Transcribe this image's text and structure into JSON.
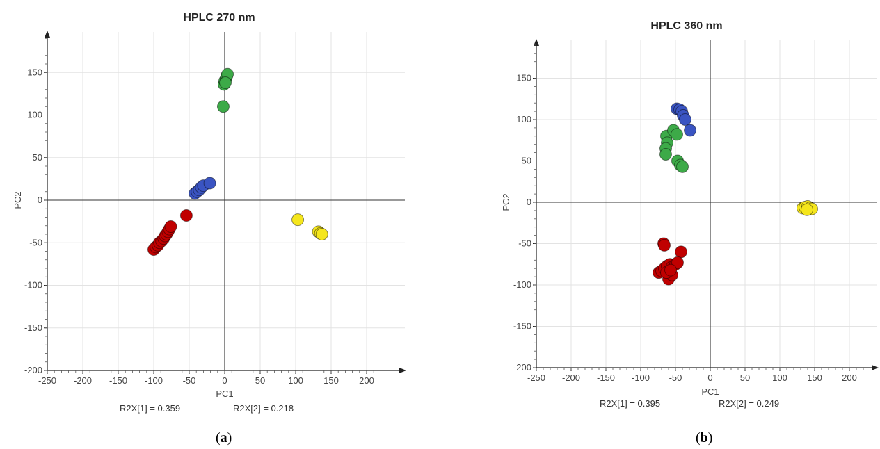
{
  "chart_data": [
    {
      "type": "scatter",
      "panel_label": "a",
      "title": "HPLC 270 nm",
      "xlabel": "PC1",
      "ylabel": "PC2",
      "xlim": [
        -250,
        250
      ],
      "ylim": [
        -200,
        200
      ],
      "xticks": [
        -250,
        -200,
        -150,
        -100,
        -50,
        0,
        50,
        100,
        150,
        200
      ],
      "yticks": [
        -200,
        -150,
        -100,
        -50,
        0,
        50,
        100,
        150
      ],
      "grid": true,
      "r2x_1": "R2X[1] = 0.359",
      "r2x_2": "R2X[2] = 0.218",
      "series": [
        {
          "color": "#c00000",
          "points": [
            [
              -100,
              -58
            ],
            [
              -97,
              -55
            ],
            [
              -94,
              -53
            ],
            [
              -92,
              -50
            ],
            [
              -89,
              -48
            ],
            [
              -86,
              -45
            ],
            [
              -84,
              -42
            ],
            [
              -82,
              -40
            ],
            [
              -80,
              -37
            ],
            [
              -78,
              -34
            ],
            [
              -76,
              -31
            ],
            [
              -54,
              -18
            ]
          ]
        },
        {
          "color": "#3a54c2",
          "points": [
            [
              -42,
              8
            ],
            [
              -39,
              10
            ],
            [
              -36,
              12
            ],
            [
              -33,
              15
            ],
            [
              -30,
              17
            ],
            [
              -21,
              20
            ]
          ]
        },
        {
          "color": "#3daa48",
          "points": [
            [
              -2,
              110
            ],
            [
              -1,
              136
            ],
            [
              0,
              140
            ],
            [
              2,
              143
            ],
            [
              3,
              146
            ],
            [
              4,
              148
            ],
            [
              1,
              138
            ]
          ]
        },
        {
          "color": "#f5e61c",
          "points": [
            [
              103,
              -23
            ],
            [
              132,
              -37
            ],
            [
              135,
              -39
            ],
            [
              137,
              -40
            ]
          ]
        }
      ]
    },
    {
      "type": "scatter",
      "panel_label": "b",
      "title": "HPLC 360 nm",
      "xlabel": "PC1",
      "ylabel": "PC2",
      "xlim": [
        -250,
        250
      ],
      "ylim": [
        -200,
        200
      ],
      "xticks": [
        -250,
        -200,
        -150,
        -100,
        -50,
        0,
        50,
        100,
        150,
        200
      ],
      "yticks": [
        -200,
        -150,
        -100,
        -50,
        0,
        50,
        100,
        150
      ],
      "grid": true,
      "r2x_1": "R2X[1] = 0.395",
      "r2x_2": "R2X[2] = 0.249",
      "series": [
        {
          "color": "#3a54c2",
          "points": [
            [
              -48,
              113
            ],
            [
              -44,
              112
            ],
            [
              -41,
              110
            ],
            [
              -39,
              105
            ],
            [
              -36,
              100
            ],
            [
              -29,
              87
            ]
          ]
        },
        {
          "color": "#3daa48",
          "points": [
            [
              -63,
              80
            ],
            [
              -62,
              72
            ],
            [
              -64,
              65
            ],
            [
              -64,
              58
            ],
            [
              -53,
              87
            ],
            [
              -48,
              82
            ],
            [
              -47,
              50
            ],
            [
              -43,
              45
            ],
            [
              -40,
              43
            ]
          ]
        },
        {
          "color": "#c00000",
          "points": [
            [
              -67,
              -50
            ],
            [
              -66,
              -52
            ],
            [
              -42,
              -60
            ],
            [
              -74,
              -85
            ],
            [
              -70,
              -83
            ],
            [
              -66,
              -80
            ],
            [
              -62,
              -77
            ],
            [
              -58,
              -75
            ],
            [
              -55,
              -78
            ],
            [
              -50,
              -75
            ],
            [
              -47,
              -73
            ],
            [
              -60,
              -93
            ],
            [
              -55,
              -88
            ],
            [
              -63,
              -85
            ],
            [
              -57,
              -82
            ]
          ]
        },
        {
          "color": "#f5e61c",
          "points": [
            [
              133,
              -7
            ],
            [
              136,
              -6
            ],
            [
              140,
              -5
            ],
            [
              143,
              -7
            ],
            [
              146,
              -8
            ],
            [
              139,
              -9
            ]
          ]
        }
      ]
    }
  ]
}
